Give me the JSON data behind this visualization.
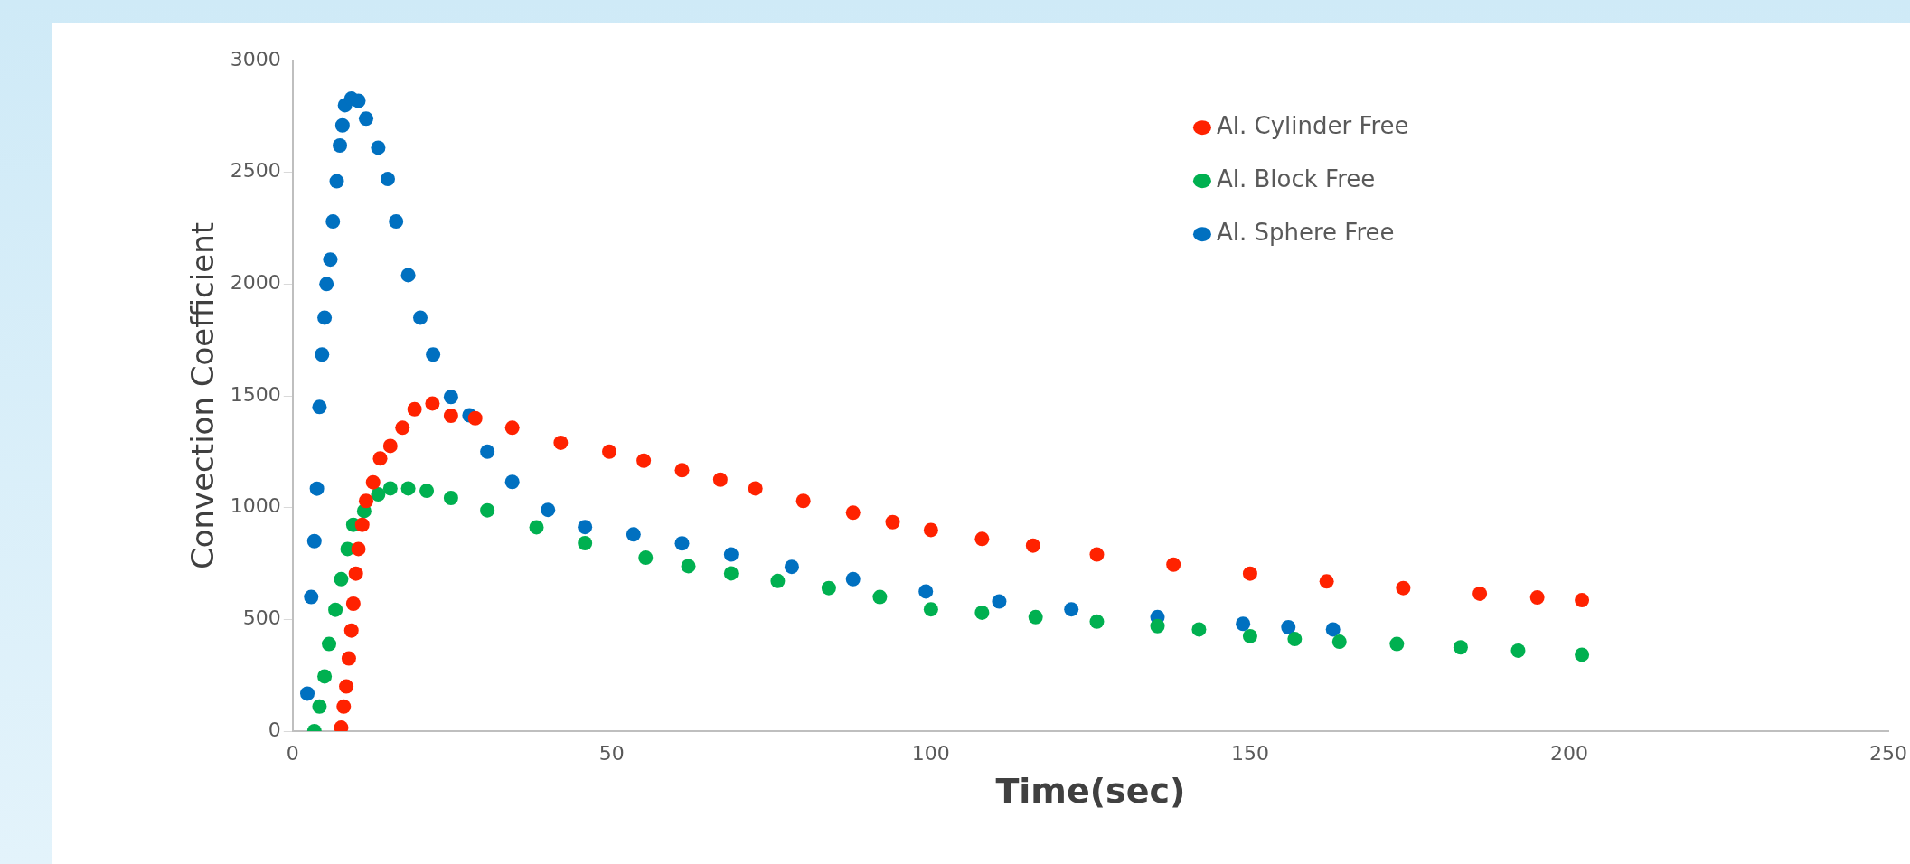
{
  "chart_data": {
    "type": "scatter",
    "xlabel": "Time(sec)",
    "ylabel": "Convection Coefficient",
    "xlim": [
      0,
      250
    ],
    "ylim": [
      0,
      3000
    ],
    "xticks": [
      0,
      50,
      100,
      150,
      200,
      250
    ],
    "yticks": [
      0,
      500,
      1000,
      1500,
      2000,
      2500,
      3000
    ],
    "grid": false,
    "legend": "top right",
    "marker": "circle",
    "series": [
      {
        "name": "Al. Cylinder Free",
        "color": "#ff2200",
        "x": [
          7.6,
          8,
          8.4,
          8.8,
          9.2,
          9.5,
          9.9,
          10.3,
          10.9,
          11.5,
          12.6,
          13.7,
          15.3,
          17.2,
          19.1,
          21.9,
          24.8,
          28.6,
          34.4,
          42,
          49.6,
          55,
          61,
          67,
          72.5,
          80,
          87.8,
          94,
          100,
          108,
          116,
          126,
          138,
          150,
          162,
          174,
          186,
          195,
          202
        ],
        "values": [
          16,
          110,
          200,
          325,
          450,
          570,
          705,
          815,
          923,
          1030,
          1113,
          1220,
          1276,
          1357,
          1440,
          1466,
          1411,
          1400,
          1357,
          1290,
          1250,
          1210,
          1167,
          1125,
          1086,
          1030,
          977,
          935,
          900,
          860,
          830,
          790,
          745,
          705,
          670,
          640,
          615,
          598,
          586
        ]
      },
      {
        "name": "Al. Block Free",
        "color": "#00b050",
        "x": [
          3.4,
          4.2,
          5,
          5.7,
          6.7,
          7.6,
          8.6,
          9.5,
          11.2,
          13.4,
          15.3,
          18.1,
          21,
          24.8,
          30.5,
          38.2,
          45.8,
          55.3,
          62,
          68.7,
          76,
          84,
          92,
          100,
          108,
          116.4,
          126,
          135.5,
          142,
          150,
          157,
          164,
          173,
          183,
          192,
          202
        ],
        "values": [
          0,
          110,
          245,
          390,
          543,
          680,
          815,
          923,
          985,
          1059,
          1086,
          1086,
          1075,
          1043,
          988,
          912,
          841,
          776,
          738,
          706,
          672,
          640,
          600,
          545,
          530,
          510,
          490,
          470,
          455,
          425,
          412,
          400,
          390,
          375,
          360,
          342
        ]
      },
      {
        "name": "Al. Sphere Free",
        "color": "#0070c0",
        "x": [
          2.3,
          2.9,
          3.4,
          3.8,
          4.2,
          4.6,
          5,
          5.3,
          5.9,
          6.3,
          6.9,
          7.4,
          7.8,
          8.2,
          9.2,
          10.3,
          11.5,
          13.4,
          14.9,
          16.2,
          18.1,
          20,
          22,
          24.8,
          27.7,
          30.5,
          34.4,
          40,
          45.8,
          53.4,
          61,
          68.7,
          78.2,
          87.8,
          99.2,
          110.7,
          122,
          135.5,
          148.9,
          156,
          163
        ],
        "values": [
          168,
          600,
          850,
          1085,
          1450,
          1685,
          1850,
          2000,
          2110,
          2280,
          2460,
          2620,
          2710,
          2800,
          2830,
          2820,
          2740,
          2610,
          2470,
          2280,
          2040,
          1850,
          1685,
          1495,
          1413,
          1250,
          1115,
          990,
          913,
          880,
          840,
          790,
          735,
          680,
          625,
          580,
          545,
          510,
          480,
          465,
          455
        ]
      }
    ]
  }
}
